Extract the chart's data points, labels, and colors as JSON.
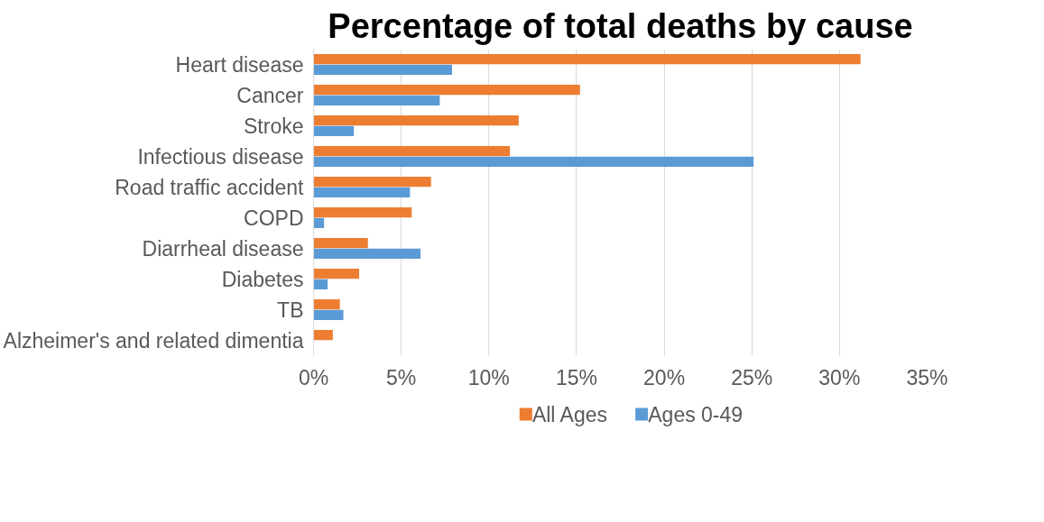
{
  "chart_data": {
    "type": "bar",
    "orientation": "horizontal",
    "title": "Percentage of total deaths by cause",
    "categories": [
      "Heart disease",
      "Cancer",
      "Stroke",
      "Infectious disease",
      "Road traffic accident",
      "COPD",
      "Diarrheal disease",
      "Diabetes",
      "TB",
      "Alzheimer's and related dimentia"
    ],
    "series": [
      {
        "name": "All Ages",
        "color": "#ed7d31",
        "values": [
          31.2,
          15.2,
          11.7,
          11.2,
          6.7,
          5.6,
          3.1,
          2.6,
          1.5,
          1.1
        ]
      },
      {
        "name": "Ages 0-49",
        "color": "#5b9bd5",
        "values": [
          7.9,
          7.2,
          2.3,
          25.1,
          5.5,
          0.6,
          6.1,
          0.8,
          1.7,
          null
        ]
      }
    ],
    "xlim": [
      0,
      35
    ],
    "xticks": [
      {
        "value": 0,
        "label": "0%"
      },
      {
        "value": 5,
        "label": "5%"
      },
      {
        "value": 10,
        "label": "10%"
      },
      {
        "value": 15,
        "label": "15%"
      },
      {
        "value": 20,
        "label": "20%"
      },
      {
        "value": 25,
        "label": "25%"
      },
      {
        "value": 30,
        "label": "30%"
      },
      {
        "value": 35,
        "label": "35%"
      }
    ],
    "grid": "x",
    "legend": "bottom"
  }
}
